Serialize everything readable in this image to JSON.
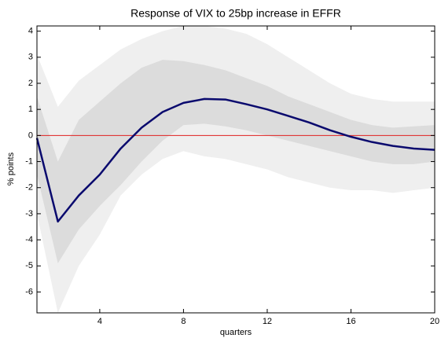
{
  "chart_data": {
    "type": "line",
    "title": "Response of VIX to 25bp increase in EFFR",
    "x_label": "quarters",
    "y_label": "% points",
    "x": [
      1,
      2,
      3,
      4,
      5,
      6,
      7,
      8,
      9,
      10,
      11,
      12,
      13,
      14,
      15,
      16,
      17,
      18,
      19,
      20
    ],
    "series": [
      {
        "color": "#0a0a6e",
        "values": [
          -0.1,
          -3.3,
          -2.3,
          -1.5,
          -0.5,
          0.3,
          0.9,
          1.25,
          1.4,
          1.38,
          1.2,
          1.0,
          0.75,
          0.5,
          0.2,
          -0.05,
          -0.25,
          -0.4,
          -0.5,
          -0.55
        ]
      }
    ],
    "bands": [
      {
        "color": "#efefef",
        "upper": [
          3.1,
          1.1,
          2.1,
          2.7,
          3.3,
          3.7,
          4.0,
          4.2,
          4.2,
          4.1,
          3.9,
          3.5,
          3.0,
          2.5,
          2.0,
          1.6,
          1.4,
          1.3,
          1.3,
          1.3
        ],
        "lower": [
          -3.0,
          -6.8,
          -5.0,
          -3.8,
          -2.3,
          -1.5,
          -0.9,
          -0.6,
          -0.8,
          -0.9,
          -1.1,
          -1.3,
          -1.6,
          -1.8,
          -2.0,
          -2.1,
          -2.1,
          -2.2,
          -2.1,
          -2.0
        ]
      },
      {
        "color": "#dcdcdc",
        "upper": [
          1.5,
          -1.0,
          0.6,
          1.3,
          2.0,
          2.6,
          2.9,
          2.85,
          2.7,
          2.5,
          2.2,
          1.9,
          1.5,
          1.2,
          0.9,
          0.6,
          0.4,
          0.3,
          0.35,
          0.4
        ],
        "lower": [
          -1.5,
          -4.9,
          -3.6,
          -2.7,
          -1.9,
          -1.0,
          -0.2,
          0.4,
          0.45,
          0.35,
          0.2,
          0.0,
          -0.2,
          -0.4,
          -0.6,
          -0.8,
          -1.0,
          -1.1,
          -1.1,
          -1.0
        ]
      }
    ],
    "reference_line": {
      "value": 0,
      "color": "#e02020"
    },
    "xlim": [
      1,
      20
    ],
    "xticks": [
      4,
      8,
      12,
      16,
      20
    ],
    "ylim": [
      -6.8,
      4.2
    ],
    "yticks": [
      4,
      3,
      2,
      1,
      0,
      -1,
      -2,
      -3,
      -4,
      -5,
      -6
    ]
  }
}
